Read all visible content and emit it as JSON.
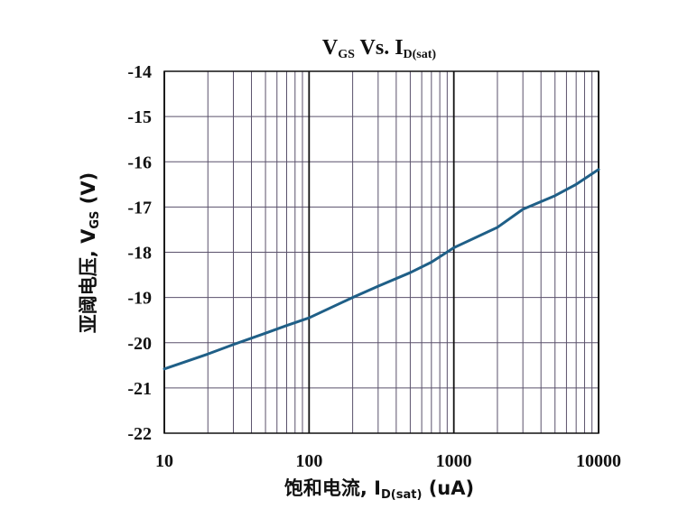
{
  "chart_data": {
    "type": "line",
    "title": {
      "main1": "V",
      "sub1": "GS",
      "main2": " Vs. I",
      "sub2": "D(sat)"
    },
    "xlabel": {
      "main": "饱和电流, I",
      "sub": "D(sat)",
      "tail": " (uA)"
    },
    "ylabel": {
      "main": "亚阈电压, V",
      "sub": "GS",
      "tail": " (V)"
    },
    "x_scale": "log",
    "xlim": [
      10,
      10000
    ],
    "ylim": [
      -22,
      -14
    ],
    "x_ticks": [
      10,
      100,
      1000,
      10000
    ],
    "x_tick_labels": [
      "10",
      "100",
      "1000",
      "10000"
    ],
    "y_ticks": [
      -22,
      -21,
      -20,
      -19,
      -18,
      -17,
      -16,
      -15,
      -14
    ],
    "y_tick_labels": [
      "-22",
      "-21",
      "-20",
      "-19",
      "-18",
      "-17",
      "-16",
      "-15",
      "-14"
    ],
    "grid": true,
    "legend": "none",
    "colors": {
      "line": "#1f5f87",
      "grid": "#5a516b",
      "major_grid": "#111111",
      "axis": "#111111"
    },
    "series": [
      {
        "x": [
          10,
          20,
          30,
          50,
          70,
          100,
          200,
          300,
          500,
          700,
          1000,
          2000,
          3000,
          5000,
          7000,
          10000
        ],
        "y": [
          -20.58,
          -20.25,
          -20.04,
          -19.79,
          -19.62,
          -19.45,
          -19.0,
          -18.75,
          -18.45,
          -18.22,
          -17.9,
          -17.45,
          -17.05,
          -16.75,
          -16.5,
          -16.17
        ]
      }
    ]
  }
}
